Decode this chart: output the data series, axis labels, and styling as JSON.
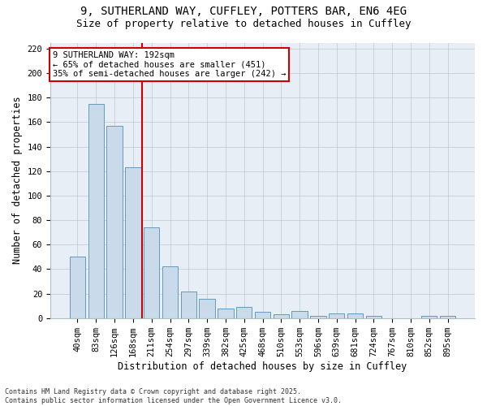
{
  "title1": "9, SUTHERLAND WAY, CUFFLEY, POTTERS BAR, EN6 4EG",
  "title2": "Size of property relative to detached houses in Cuffley",
  "xlabel": "Distribution of detached houses by size in Cuffley",
  "ylabel": "Number of detached properties",
  "categories": [
    "40sqm",
    "83sqm",
    "126sqm",
    "168sqm",
    "211sqm",
    "254sqm",
    "297sqm",
    "339sqm",
    "382sqm",
    "425sqm",
    "468sqm",
    "510sqm",
    "553sqm",
    "596sqm",
    "639sqm",
    "681sqm",
    "724sqm",
    "767sqm",
    "810sqm",
    "852sqm",
    "895sqm"
  ],
  "values": [
    50,
    175,
    157,
    123,
    74,
    42,
    22,
    16,
    8,
    9,
    5,
    3,
    6,
    2,
    4,
    4,
    2,
    0,
    0,
    2,
    2
  ],
  "bar_color": "#c9daea",
  "bar_edge_color": "#6699bb",
  "vline_pos": 3.5,
  "vline_color": "#cc0000",
  "annotation_line1": "9 SUTHERLAND WAY: 192sqm",
  "annotation_line2": "← 65% of detached houses are smaller (451)",
  "annotation_line3": "35% of semi-detached houses are larger (242) →",
  "annotation_box_facecolor": "#ffffff",
  "annotation_box_edgecolor": "#cc0000",
  "ylim": [
    0,
    225
  ],
  "yticks": [
    0,
    20,
    40,
    60,
    80,
    100,
    120,
    140,
    160,
    180,
    200,
    220
  ],
  "background_color": "#ffffff",
  "plot_bg_color": "#e8eef5",
  "grid_color": "#b0bec5",
  "footer_text": "Contains HM Land Registry data © Crown copyright and database right 2025.\nContains public sector information licensed under the Open Government Licence v3.0.",
  "title_fontsize": 10,
  "subtitle_fontsize": 9,
  "axis_label_fontsize": 8.5,
  "tick_fontsize": 7.5,
  "annotation_fontsize": 7.5,
  "footer_fontsize": 6
}
